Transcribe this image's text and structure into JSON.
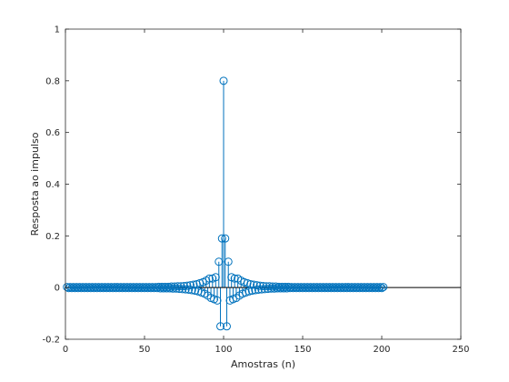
{
  "chart_data": {
    "type": "stem",
    "title": "",
    "xlabel": "Amostras (n)",
    "ylabel": "Resposta ao impulso",
    "xlim": [
      0,
      250
    ],
    "ylim": [
      -0.2,
      1
    ],
    "xticks": [
      0,
      50,
      100,
      150,
      200,
      250
    ],
    "yticks": [
      -0.2,
      0,
      0.2,
      0.4,
      0.6,
      0.8,
      1
    ],
    "xtick_labels": [
      "0",
      "50",
      "100",
      "150",
      "200",
      "250"
    ],
    "ytick_labels": [
      "-0.2",
      "0",
      "0.2",
      "0.4",
      "0.6",
      "0.8",
      "1"
    ],
    "grid": false,
    "marker": "circle",
    "colors": {
      "series": "#0072BD",
      "axes": "#262626",
      "baseline": "#000000"
    },
    "series": [
      {
        "x": [
          1,
          2,
          3,
          4,
          5,
          6,
          7,
          8,
          9,
          10,
          11,
          12,
          13,
          14,
          15,
          16,
          17,
          18,
          19,
          20,
          21,
          22,
          23,
          24,
          25,
          26,
          27,
          28,
          29,
          30,
          31,
          32,
          33,
          34,
          35,
          36,
          37,
          38,
          39,
          40,
          41,
          42,
          43,
          44,
          45,
          46,
          47,
          48,
          49,
          50,
          51,
          52,
          53,
          54,
          55,
          56,
          57,
          58,
          59,
          60,
          61,
          62,
          63,
          64,
          65,
          66,
          67,
          68,
          69,
          70,
          71,
          72,
          73,
          74,
          75,
          76,
          77,
          78,
          79,
          80,
          81,
          82,
          83,
          84,
          85,
          86,
          87,
          88,
          89,
          90,
          91,
          92,
          93,
          94,
          95,
          96,
          97,
          98,
          99,
          100,
          101,
          102,
          103,
          104,
          105,
          106,
          107,
          108,
          109,
          110,
          111,
          112,
          113,
          114,
          115,
          116,
          117,
          118,
          119,
          120,
          121,
          122,
          123,
          124,
          125,
          126,
          127,
          128,
          129,
          130,
          131,
          132,
          133,
          134,
          135,
          136,
          137,
          138,
          139,
          140,
          141,
          142,
          143,
          144,
          145,
          146,
          147,
          148,
          149,
          150,
          151,
          152,
          153,
          154,
          155,
          156,
          157,
          158,
          159,
          160,
          161,
          162,
          163,
          164,
          165,
          166,
          167,
          168,
          169,
          170,
          171,
          172,
          173,
          174,
          175,
          176,
          177,
          178,
          179,
          180,
          181,
          182,
          183,
          184,
          185,
          186,
          187,
          188,
          189,
          190,
          191,
          192,
          193,
          194,
          195,
          196,
          197,
          198,
          199,
          200,
          201
        ],
        "y": [
          0.002,
          -0.002,
          0.002,
          -0.002,
          0.002,
          -0.002,
          0.002,
          -0.002,
          0.002,
          -0.002,
          0.002,
          -0.002,
          0.002,
          -0.002,
          0.002,
          -0.002,
          0.002,
          -0.002,
          0.002,
          -0.002,
          0.002,
          -0.002,
          0.002,
          -0.002,
          0.002,
          -0.002,
          0.002,
          -0.002,
          0.002,
          -0.002,
          0.002,
          -0.002,
          0.002,
          -0.002,
          0.002,
          -0.002,
          0.002,
          -0.002,
          0.002,
          -0.002,
          0.002,
          -0.002,
          0.002,
          -0.002,
          0.002,
          -0.002,
          0.002,
          -0.002,
          0.002,
          -0.002,
          0.002,
          -0.002,
          0.002,
          -0.002,
          0.002,
          -0.002,
          0.002,
          -0.002,
          0.003,
          -0.003,
          0.003,
          -0.003,
          0.003,
          -0.003,
          0.003,
          -0.003,
          0.004,
          -0.004,
          0.004,
          -0.004,
          0.005,
          -0.005,
          0.005,
          -0.006,
          0.006,
          -0.007,
          0.007,
          -0.008,
          0.009,
          -0.01,
          0.011,
          -0.012,
          0.013,
          -0.015,
          0.017,
          -0.019,
          0.021,
          -0.024,
          0.027,
          -0.031,
          0.035,
          -0.04,
          0.035,
          -0.045,
          0.04,
          -0.05,
          0.1,
          -0.15,
          0.19,
          0.8,
          0.19,
          -0.15,
          0.1,
          -0.05,
          0.04,
          -0.045,
          0.035,
          -0.04,
          0.035,
          -0.031,
          0.027,
          -0.024,
          0.021,
          -0.019,
          0.017,
          -0.015,
          0.013,
          -0.012,
          0.011,
          -0.01,
          0.009,
          -0.008,
          0.007,
          -0.007,
          0.006,
          -0.006,
          0.005,
          -0.005,
          0.005,
          -0.004,
          0.004,
          -0.004,
          0.004,
          -0.003,
          0.003,
          -0.003,
          0.003,
          -0.003,
          0.003,
          -0.003,
          0.003,
          -0.002,
          0.002,
          -0.002,
          0.002,
          -0.002,
          0.002,
          -0.002,
          0.002,
          -0.002,
          0.002,
          -0.002,
          0.002,
          -0.002,
          0.002,
          -0.002,
          0.002,
          -0.002,
          0.002,
          -0.002,
          0.002,
          -0.002,
          0.002,
          -0.002,
          0.002,
          -0.002,
          0.002,
          -0.002,
          0.002,
          -0.002,
          0.002,
          -0.002,
          0.002,
          -0.002,
          0.002,
          -0.002,
          0.002,
          -0.002,
          0.002,
          -0.002,
          0.002,
          -0.002,
          0.002,
          -0.002,
          0.002,
          -0.002,
          0.002,
          -0.002,
          0.002,
          -0.002,
          0.002,
          -0.002,
          0.002,
          -0.002,
          0.002,
          -0.002,
          0.002,
          -0.002,
          0.002,
          -0.002,
          0.002
        ]
      }
    ]
  }
}
